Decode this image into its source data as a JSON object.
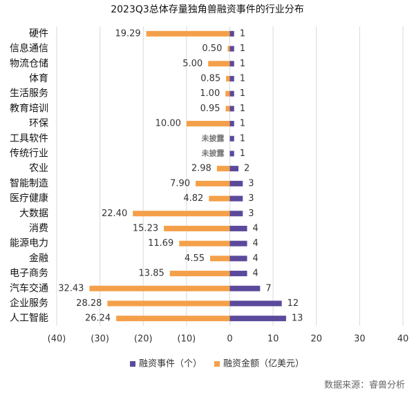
{
  "chart_data": {
    "type": "diverging-bar",
    "title": "2023Q3总体存量独角兽融资事件的行业分布",
    "categories": [
      "硬件",
      "信息通信",
      "物流仓储",
      "体育",
      "生活服务",
      "教育培训",
      "环保",
      "工具软件",
      "传统行业",
      "农业",
      "智能制造",
      "医疗健康",
      "大数据",
      "消费",
      "能源电力",
      "金融",
      "电子商务",
      "汽车交通",
      "企业服务",
      "人工智能"
    ],
    "series": [
      {
        "name": "融资事件（个）",
        "color": "#5b4a9b",
        "values": [
          1,
          1,
          1,
          1,
          1,
          1,
          1,
          1,
          1,
          2,
          3,
          3,
          3,
          4,
          4,
          4,
          4,
          7,
          12,
          13
        ]
      },
      {
        "name": "融资金额（亿美元）",
        "color": "#f4a04a",
        "values": [
          -19.29,
          -0.5,
          -5.0,
          -0.85,
          -1.0,
          -0.95,
          -10.0,
          null,
          null,
          -2.98,
          -7.9,
          -4.82,
          -22.4,
          -15.23,
          -11.69,
          -4.55,
          -13.85,
          -32.43,
          -28.28,
          -26.24
        ],
        "value_labels": [
          "19.29",
          "0.50",
          "5.00",
          "0.85",
          "1.00",
          "0.95",
          "10.00",
          "未披露",
          "未披露",
          "2.98",
          "7.90",
          "4.82",
          "22.40",
          "15.23",
          "11.69",
          "4.55",
          "13.85",
          "32.43",
          "28.28",
          "26.24"
        ]
      }
    ],
    "xlim": [
      -40,
      40
    ],
    "xticks": [
      {
        "value": -40,
        "label": "(40)"
      },
      {
        "value": -30,
        "label": "(30)"
      },
      {
        "value": -20,
        "label": "(20)"
      },
      {
        "value": -10,
        "label": "(10)"
      },
      0,
      10,
      20,
      30,
      40
    ],
    "grid": true,
    "legend": "bottom",
    "source": "数据来源：睿兽分析"
  }
}
